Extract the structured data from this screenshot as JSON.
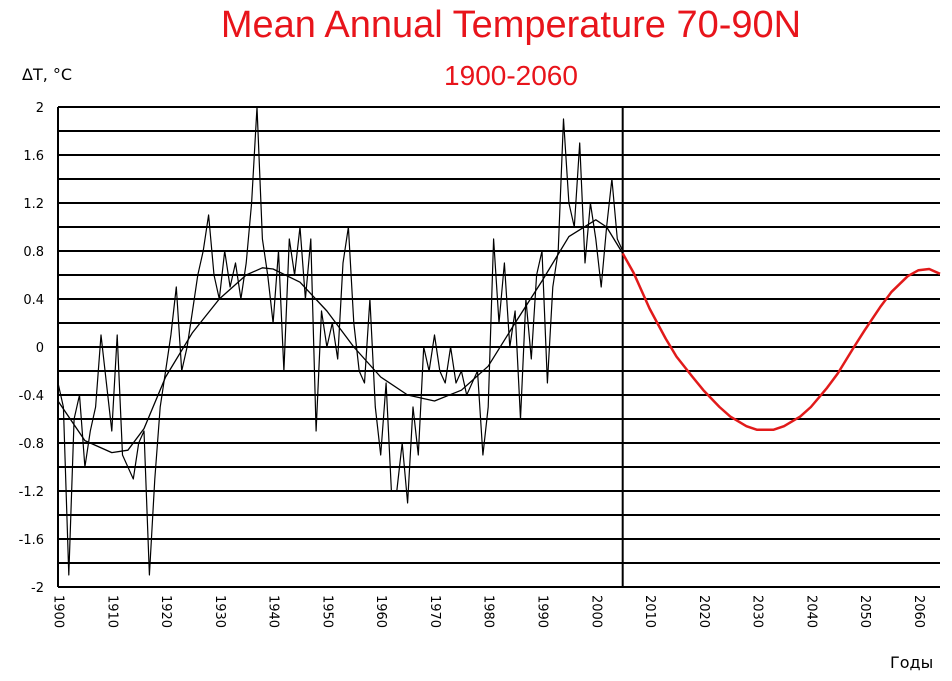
{
  "chart_data": {
    "type": "line",
    "title": "Mean Annual Temperature 70-90N",
    "subtitle": "1900-2060",
    "ylabel": "ΔT, °C",
    "xlabel": "Годы",
    "xlim": [
      1900,
      2064
    ],
    "ylim": [
      -2,
      2
    ],
    "x_ticks": [
      1900,
      1910,
      1920,
      1930,
      1940,
      1950,
      1960,
      1970,
      1980,
      1990,
      2000,
      2010,
      2020,
      2030,
      2040,
      2050,
      2060
    ],
    "y_ticks": [
      2,
      1.6,
      1.2,
      0.8,
      0.4,
      0,
      -0.4,
      -0.8,
      -1.2,
      -1.6,
      -2
    ],
    "y_gridline_step": 0.2,
    "grid": "horizontal",
    "forecast_divider_year": 2005,
    "colors": {
      "observed": "#000000",
      "smoothed": "#000000",
      "forecast": "#e11a1a",
      "title": "#e8141b"
    },
    "series": [
      {
        "role": "observed",
        "x": [
          1900,
          1901,
          1902,
          1903,
          1904,
          1905,
          1906,
          1907,
          1908,
          1909,
          1910,
          1911,
          1912,
          1913,
          1914,
          1915,
          1916,
          1917,
          1918,
          1919,
          1920,
          1921,
          1922,
          1923,
          1924,
          1925,
          1926,
          1927,
          1928,
          1929,
          1930,
          1931,
          1932,
          1933,
          1934,
          1935,
          1936,
          1937,
          1938,
          1939,
          1940,
          1941,
          1942,
          1943,
          1944,
          1945,
          1946,
          1947,
          1948,
          1949,
          1950,
          1951,
          1952,
          1953,
          1954,
          1955,
          1956,
          1957,
          1958,
          1959,
          1960,
          1961,
          1962,
          1963,
          1964,
          1965,
          1966,
          1967,
          1968,
          1969,
          1970,
          1971,
          1972,
          1973,
          1974,
          1975,
          1976,
          1977,
          1978,
          1979,
          1980,
          1981,
          1982,
          1983,
          1984,
          1985,
          1986,
          1987,
          1988,
          1989,
          1990,
          1991,
          1992,
          1993,
          1994,
          1995,
          1996,
          1997,
          1998,
          1999,
          2000,
          2001,
          2002,
          2003,
          2004,
          2005
        ],
        "y": [
          -0.3,
          -0.5,
          -1.9,
          -0.6,
          -0.4,
          -1.0,
          -0.7,
          -0.5,
          0.1,
          -0.3,
          -0.7,
          0.1,
          -0.9,
          -1.0,
          -1.1,
          -0.8,
          -0.7,
          -1.9,
          -1.1,
          -0.5,
          -0.2,
          0.1,
          0.5,
          -0.2,
          0.0,
          0.3,
          0.6,
          0.8,
          1.1,
          0.6,
          0.4,
          0.8,
          0.5,
          0.7,
          0.4,
          0.7,
          1.2,
          2.0,
          0.9,
          0.6,
          0.2,
          0.8,
          -0.2,
          0.9,
          0.6,
          1.0,
          0.4,
          0.9,
          -0.7,
          0.3,
          0.0,
          0.2,
          -0.1,
          0.7,
          1.0,
          0.2,
          -0.2,
          -0.3,
          0.4,
          -0.5,
          -0.9,
          -0.3,
          -1.2,
          -1.2,
          -0.8,
          -1.3,
          -0.5,
          -0.9,
          0.0,
          -0.2,
          0.1,
          -0.2,
          -0.3,
          0.0,
          -0.3,
          -0.2,
          -0.4,
          -0.3,
          -0.2,
          -0.9,
          -0.5,
          0.9,
          0.2,
          0.7,
          0.0,
          0.3,
          -0.6,
          0.4,
          -0.1,
          0.6,
          0.8,
          -0.3,
          0.5,
          0.8,
          1.9,
          1.2,
          1.0,
          1.7,
          0.7,
          1.2,
          0.9,
          0.5,
          1.0,
          1.4,
          0.9,
          0.8
        ]
      },
      {
        "role": "smoothed",
        "x": [
          1900,
          1905,
          1910,
          1913,
          1916,
          1920,
          1925,
          1930,
          1935,
          1938,
          1940,
          1945,
          1950,
          1955,
          1960,
          1965,
          1970,
          1975,
          1980,
          1985,
          1990,
          1995,
          2000,
          2002,
          2005
        ],
        "y": [
          -0.45,
          -0.78,
          -0.88,
          -0.86,
          -0.68,
          -0.25,
          0.12,
          0.4,
          0.6,
          0.66,
          0.65,
          0.54,
          0.3,
          0.0,
          -0.25,
          -0.4,
          -0.45,
          -0.36,
          -0.16,
          0.2,
          0.55,
          0.92,
          1.06,
          1.0,
          0.78
        ]
      },
      {
        "role": "forecast",
        "x": [
          2005,
          2007,
          2010,
          2013,
          2015,
          2018,
          2020,
          2023,
          2025,
          2028,
          2030,
          2033,
          2035,
          2038,
          2040,
          2043,
          2045,
          2048,
          2050,
          2053,
          2055,
          2058,
          2060,
          2062,
          2064
        ],
        "y": [
          0.78,
          0.62,
          0.32,
          0.07,
          -0.08,
          -0.25,
          -0.36,
          -0.5,
          -0.58,
          -0.66,
          -0.69,
          -0.69,
          -0.66,
          -0.58,
          -0.5,
          -0.34,
          -0.22,
          0.0,
          0.14,
          0.34,
          0.46,
          0.59,
          0.64,
          0.65,
          0.61
        ]
      }
    ]
  }
}
